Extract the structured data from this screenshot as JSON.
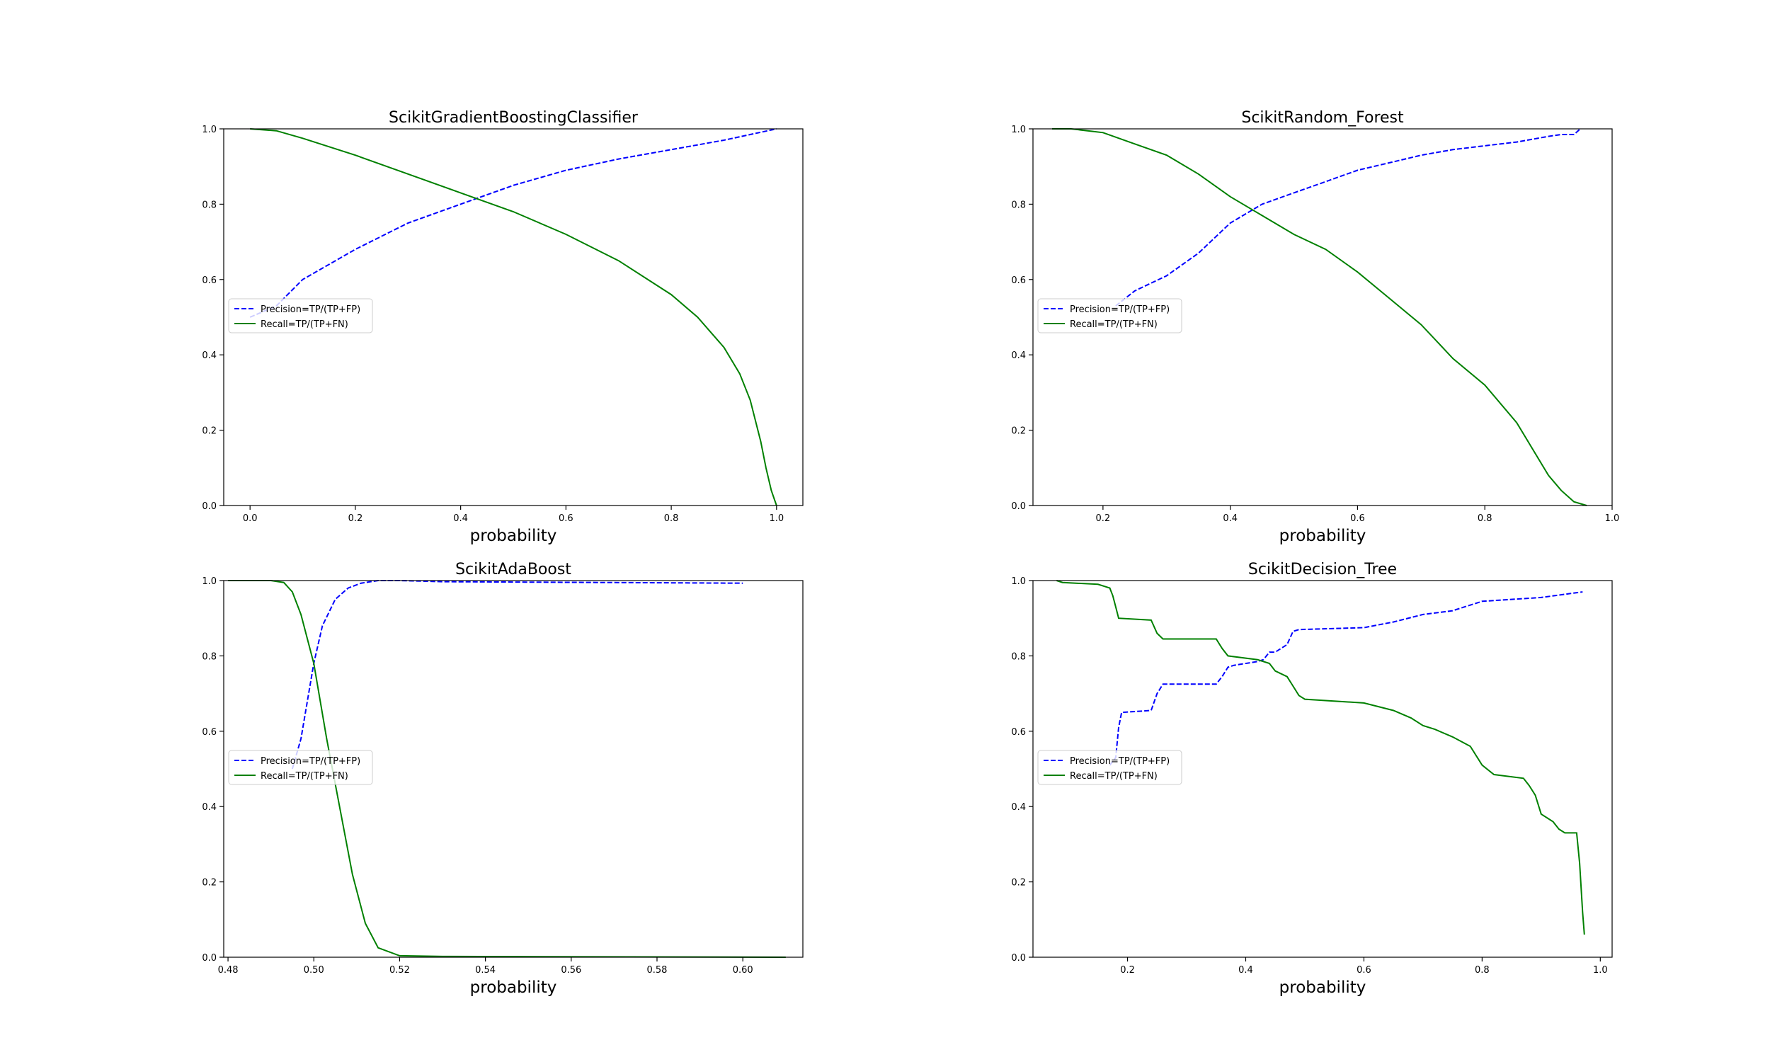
{
  "chart_data": [
    {
      "type": "line",
      "title": "ScikitGradientBoostingClassifier",
      "xlabel": "probability",
      "ylabel": "",
      "xlim": [
        -0.05,
        1.05
      ],
      "ylim": [
        0,
        1
      ],
      "xticks": [
        0.0,
        0.2,
        0.4,
        0.6,
        0.8,
        1.0
      ],
      "xtick_labels": [
        "0.0",
        "0.2",
        "0.4",
        "0.6",
        "0.8",
        "1.0"
      ],
      "yticks": [
        0.0,
        0.2,
        0.4,
        0.6,
        0.8,
        1.0
      ],
      "ytick_labels": [
        "0.0",
        "0.2",
        "0.4",
        "0.6",
        "0.8",
        "1.0"
      ],
      "grid": false,
      "legend_position": "center-left",
      "series": [
        {
          "name": "Precision=TP/(TP+FP)",
          "color": "#0000ff",
          "style": "dashed",
          "x": [
            0.0,
            0.05,
            0.1,
            0.15,
            0.2,
            0.3,
            0.4,
            0.42,
            0.5,
            0.6,
            0.7,
            0.8,
            0.9,
            1.0
          ],
          "y": [
            0.5,
            0.53,
            0.6,
            0.64,
            0.68,
            0.75,
            0.8,
            0.81,
            0.85,
            0.89,
            0.92,
            0.945,
            0.97,
            1.0
          ]
        },
        {
          "name": "Recall=TP/(TP+FN)",
          "color": "#008000",
          "style": "solid",
          "x": [
            0.0,
            0.05,
            0.1,
            0.2,
            0.3,
            0.4,
            0.5,
            0.6,
            0.7,
            0.8,
            0.85,
            0.9,
            0.93,
            0.95,
            0.97,
            0.98,
            0.99,
            1.0
          ],
          "y": [
            1.0,
            0.995,
            0.975,
            0.93,
            0.88,
            0.83,
            0.78,
            0.72,
            0.65,
            0.56,
            0.5,
            0.42,
            0.35,
            0.28,
            0.17,
            0.1,
            0.04,
            0.0
          ]
        }
      ]
    },
    {
      "type": "line",
      "title": "ScikitRandom_Forest",
      "xlabel": "probability",
      "ylabel": "",
      "xlim": [
        0.09,
        1.0
      ],
      "ylim": [
        0,
        1
      ],
      "xticks": [
        0.2,
        0.4,
        0.6,
        0.8,
        1.0
      ],
      "xtick_labels": [
        "0.2",
        "0.4",
        "0.6",
        "0.8",
        "1.0"
      ],
      "yticks": [
        0.0,
        0.2,
        0.4,
        0.6,
        0.8,
        1.0
      ],
      "ytick_labels": [
        "0.0",
        "0.2",
        "0.4",
        "0.6",
        "0.8",
        "1.0"
      ],
      "grid": false,
      "legend_position": "center-left",
      "series": [
        {
          "name": "Precision=TP/(TP+FP)",
          "color": "#0000ff",
          "style": "dashed",
          "x": [
            0.22,
            0.25,
            0.3,
            0.35,
            0.4,
            0.45,
            0.5,
            0.55,
            0.6,
            0.65,
            0.7,
            0.75,
            0.8,
            0.85,
            0.9,
            0.92,
            0.94,
            0.95
          ],
          "y": [
            0.53,
            0.57,
            0.61,
            0.67,
            0.75,
            0.8,
            0.83,
            0.86,
            0.89,
            0.91,
            0.93,
            0.945,
            0.955,
            0.965,
            0.98,
            0.985,
            0.985,
            1.0
          ]
        },
        {
          "name": "Recall=TP/(TP+FN)",
          "color": "#008000",
          "style": "solid",
          "x": [
            0.12,
            0.15,
            0.2,
            0.25,
            0.3,
            0.35,
            0.4,
            0.45,
            0.5,
            0.55,
            0.6,
            0.65,
            0.7,
            0.75,
            0.8,
            0.85,
            0.9,
            0.92,
            0.94,
            0.96
          ],
          "y": [
            1.0,
            1.0,
            0.99,
            0.96,
            0.93,
            0.88,
            0.82,
            0.77,
            0.72,
            0.68,
            0.62,
            0.55,
            0.48,
            0.39,
            0.32,
            0.22,
            0.08,
            0.04,
            0.01,
            0.0
          ]
        }
      ]
    },
    {
      "type": "line",
      "title": "ScikitAdaBoost",
      "xlabel": "probability",
      "ylabel": "",
      "xlim": [
        0.479,
        0.614
      ],
      "ylim": [
        0,
        1
      ],
      "xticks": [
        0.48,
        0.5,
        0.52,
        0.54,
        0.56,
        0.58,
        0.6
      ],
      "xtick_labels": [
        "0.48",
        "0.50",
        "0.52",
        "0.54",
        "0.56",
        "0.58",
        "0.60"
      ],
      "yticks": [
        0.0,
        0.2,
        0.4,
        0.6,
        0.8,
        1.0
      ],
      "ytick_labels": [
        "0.0",
        "0.2",
        "0.4",
        "0.6",
        "0.8",
        "1.0"
      ],
      "grid": false,
      "legend_position": "center-left",
      "series": [
        {
          "name": "Precision=TP/(TP+FP)",
          "color": "#0000ff",
          "style": "dashed",
          "x": [
            0.495,
            0.497,
            0.5,
            0.502,
            0.505,
            0.508,
            0.511,
            0.515,
            0.52,
            0.53,
            0.6
          ],
          "y": [
            0.5,
            0.58,
            0.78,
            0.88,
            0.95,
            0.98,
            0.993,
            1.0,
            1.0,
            0.997,
            0.993
          ]
        },
        {
          "name": "Recall=TP/(TP+FN)",
          "color": "#008000",
          "style": "solid",
          "x": [
            0.48,
            0.49,
            0.493,
            0.495,
            0.497,
            0.5,
            0.503,
            0.506,
            0.509,
            0.512,
            0.515,
            0.52,
            0.53,
            0.61
          ],
          "y": [
            1.0,
            1.0,
            0.995,
            0.97,
            0.91,
            0.78,
            0.58,
            0.4,
            0.22,
            0.09,
            0.025,
            0.004,
            0.002,
            0.0
          ]
        }
      ]
    },
    {
      "type": "line",
      "title": "ScikitDecision_Tree",
      "xlabel": "probability",
      "ylabel": "",
      "xlim": [
        0.04,
        1.02
      ],
      "ylim": [
        0,
        1
      ],
      "xticks": [
        0.2,
        0.4,
        0.6,
        0.8,
        1.0
      ],
      "xtick_labels": [
        "0.2",
        "0.4",
        "0.6",
        "0.8",
        "1.0"
      ],
      "yticks": [
        0.0,
        0.2,
        0.4,
        0.6,
        0.8,
        1.0
      ],
      "ytick_labels": [
        "0.0",
        "0.2",
        "0.4",
        "0.6",
        "0.8",
        "1.0"
      ],
      "grid": false,
      "legend_position": "center-left",
      "series": [
        {
          "name": "Precision=TP/(TP+FP)",
          "color": "#0000ff",
          "style": "dashed",
          "x": [
            0.17,
            0.18,
            0.185,
            0.19,
            0.24,
            0.25,
            0.26,
            0.35,
            0.36,
            0.37,
            0.38,
            0.42,
            0.43,
            0.44,
            0.45,
            0.47,
            0.48,
            0.49,
            0.6,
            0.65,
            0.7,
            0.75,
            0.8,
            0.9,
            0.97
          ],
          "y": [
            0.51,
            0.53,
            0.61,
            0.65,
            0.655,
            0.7,
            0.725,
            0.725,
            0.745,
            0.77,
            0.775,
            0.785,
            0.79,
            0.81,
            0.81,
            0.83,
            0.865,
            0.87,
            0.875,
            0.89,
            0.91,
            0.92,
            0.945,
            0.955,
            0.97
          ]
        },
        {
          "name": "Recall=TP/(TP+FN)",
          "color": "#008000",
          "style": "solid",
          "x": [
            0.08,
            0.09,
            0.15,
            0.17,
            0.175,
            0.18,
            0.185,
            0.24,
            0.25,
            0.26,
            0.35,
            0.36,
            0.37,
            0.42,
            0.44,
            0.45,
            0.47,
            0.48,
            0.49,
            0.5,
            0.6,
            0.65,
            0.68,
            0.7,
            0.72,
            0.75,
            0.78,
            0.8,
            0.82,
            0.87,
            0.88,
            0.89,
            0.9,
            0.92,
            0.93,
            0.94,
            0.96,
            0.965,
            0.97,
            0.973
          ],
          "y": [
            1.0,
            0.995,
            0.99,
            0.98,
            0.96,
            0.93,
            0.9,
            0.895,
            0.86,
            0.845,
            0.845,
            0.82,
            0.8,
            0.79,
            0.78,
            0.76,
            0.745,
            0.72,
            0.695,
            0.685,
            0.675,
            0.655,
            0.635,
            0.615,
            0.605,
            0.585,
            0.56,
            0.51,
            0.485,
            0.475,
            0.455,
            0.43,
            0.38,
            0.36,
            0.34,
            0.33,
            0.33,
            0.25,
            0.12,
            0.06
          ]
        }
      ]
    }
  ]
}
